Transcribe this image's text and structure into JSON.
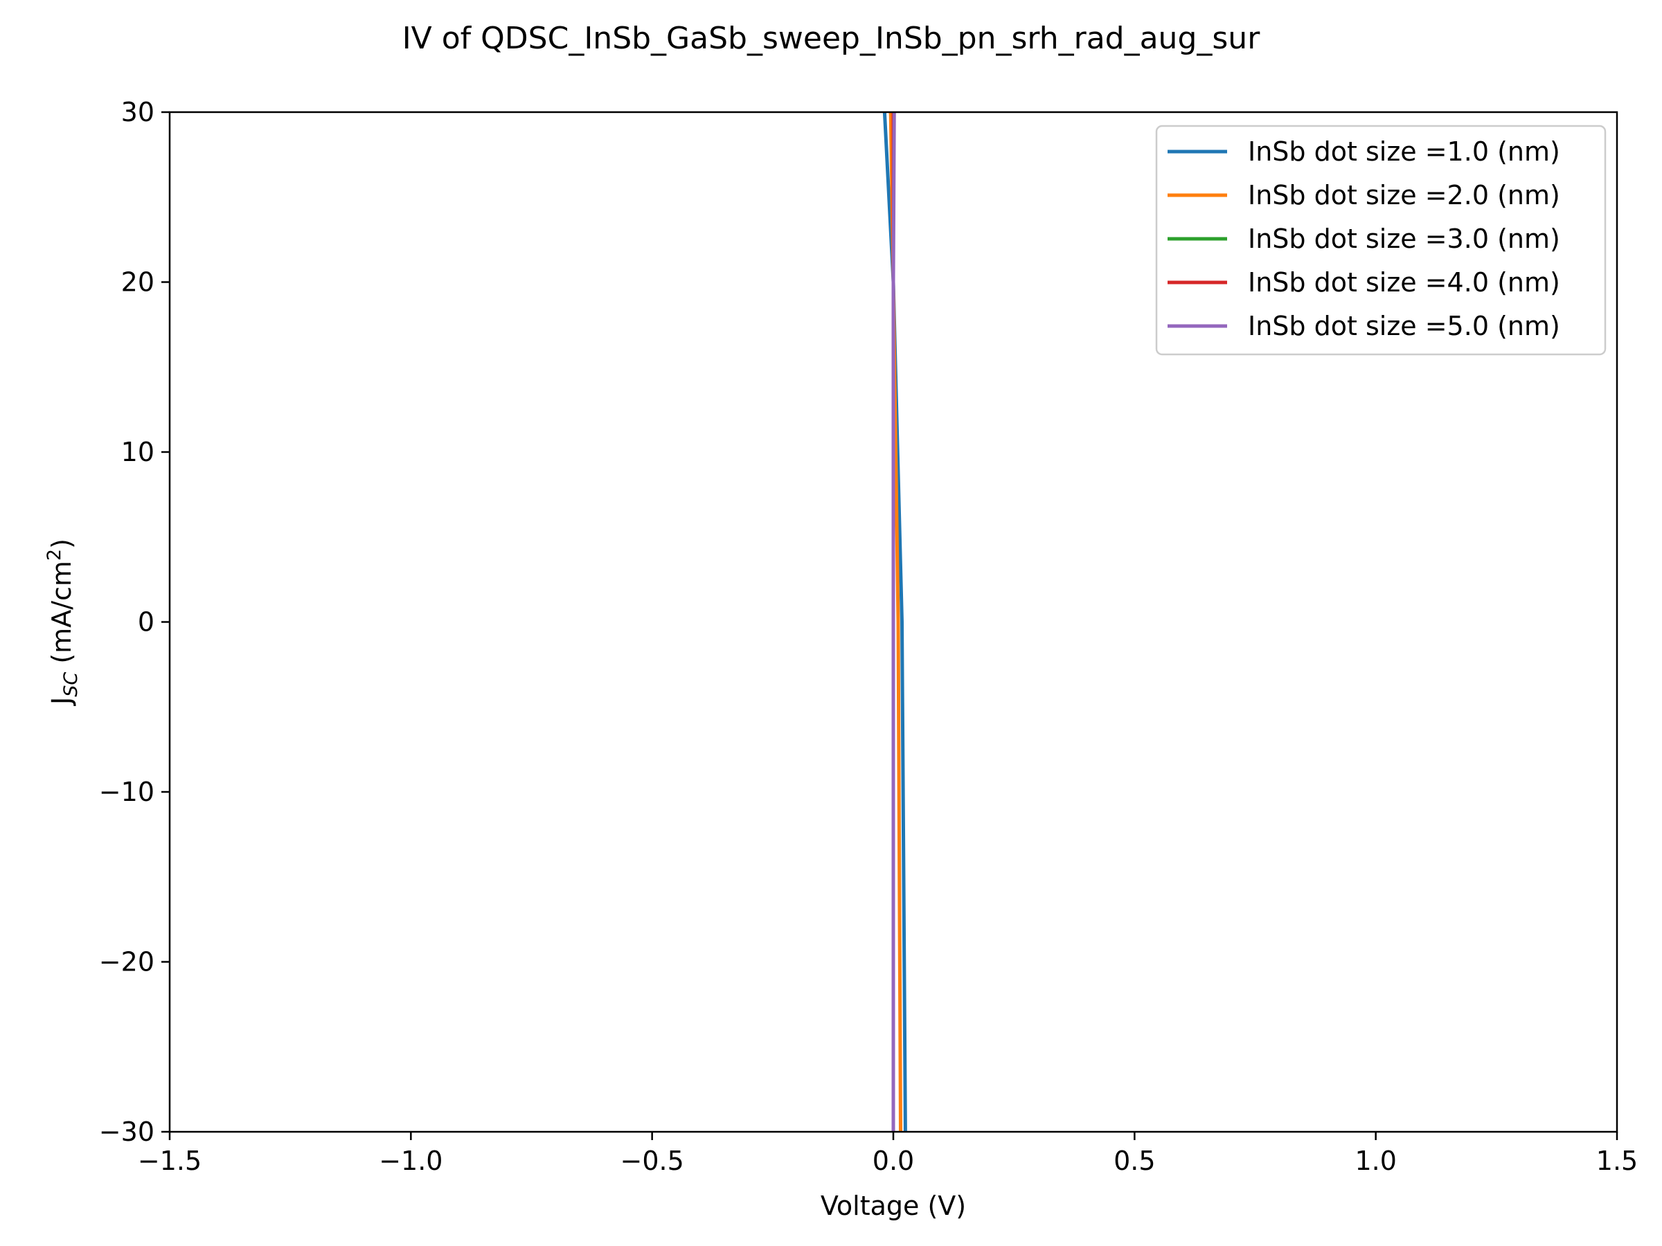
{
  "chart_data": {
    "type": "line",
    "title": "IV of QDSC_InSb_GaSb_sweep_InSb_pn_srh_rad_aug_sur",
    "xlabel": "Voltage (V)",
    "ylabel_main": "J",
    "ylabel_sub": "SC",
    "ylabel_unit_pre": " (mA/cm",
    "ylabel_unit_sup": "2",
    "ylabel_unit_post": ")",
    "xlim": [
      -1.5,
      1.5
    ],
    "ylim": [
      -30,
      30
    ],
    "xticks": [
      -1.5,
      -1.0,
      -0.5,
      0.0,
      0.5,
      1.0,
      1.5
    ],
    "xtick_labels": [
      "−1.5",
      "−1.0",
      "−0.5",
      "0.0",
      "0.5",
      "1.0",
      "1.5"
    ],
    "yticks": [
      -30,
      -20,
      -10,
      0,
      10,
      20,
      30
    ],
    "ytick_labels": [
      "−30",
      "−20",
      "−10",
      "0",
      "10",
      "20",
      "30"
    ],
    "grid": false,
    "legend_position": "top-right",
    "series": [
      {
        "name": "InSb dot size =1.0 (nm)",
        "color": "#1f77b4",
        "x": [
          0.025,
          0.018,
          0.0,
          -0.02
        ],
        "y": [
          -30,
          0,
          20,
          31
        ]
      },
      {
        "name": "InSb dot size =2.0 (nm)",
        "color": "#ff7f0e",
        "x": [
          0.015,
          0.01,
          0.0,
          -0.006
        ],
        "y": [
          -30,
          0,
          20,
          31
        ]
      },
      {
        "name": "InSb dot size =3.0 (nm)",
        "color": "#2ca02c",
        "x": [
          0.0,
          0.0,
          0.0,
          0.0
        ],
        "y": [
          -30,
          0,
          20,
          31
        ]
      },
      {
        "name": "InSb dot size =4.0 (nm)",
        "color": "#d62728",
        "x": [
          0.0,
          0.0,
          0.0,
          0.0
        ],
        "y": [
          -30,
          0,
          20,
          31
        ]
      },
      {
        "name": "InSb dot size =5.0 (nm)",
        "color": "#9467bd",
        "x": [
          0.0,
          0.0,
          0.0,
          0.002
        ],
        "y": [
          -30,
          0,
          20,
          31
        ]
      }
    ]
  }
}
